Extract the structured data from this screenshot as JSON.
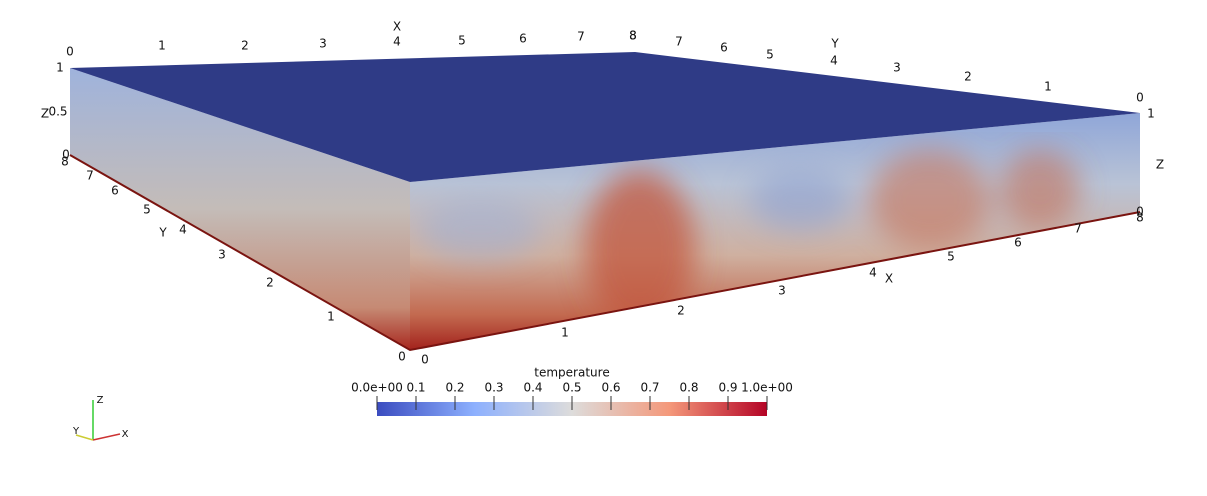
{
  "box_axes": {
    "back_x": {
      "title": "X",
      "labels": [
        0,
        1,
        2,
        3,
        4,
        5,
        6,
        7,
        8
      ]
    },
    "back_y": {
      "title": "Y",
      "labels": [
        8,
        7,
        6,
        5,
        4,
        3,
        2,
        1,
        0
      ]
    },
    "left_z": {
      "title": "Z",
      "labels": [
        1,
        0.5,
        0
      ]
    },
    "right_z": {
      "title": "Z",
      "labels": [
        1,
        0
      ]
    },
    "front_y": {
      "title": "Y",
      "labels": [
        8,
        7,
        6,
        5,
        4,
        3,
        2,
        1,
        0
      ]
    },
    "front_x": {
      "title": "X",
      "labels": [
        0,
        1,
        2,
        3,
        4,
        5,
        6,
        7,
        8
      ]
    }
  },
  "colorbar": {
    "title": "temperature",
    "range": [
      0,
      1
    ],
    "ticks": [
      {
        "value": 0,
        "label": "0.0e+00"
      },
      0.1,
      0.2,
      0.3,
      0.4,
      0.5,
      0.6,
      0.7,
      0.8,
      0.9,
      {
        "value": 1,
        "label": "1.0e+00"
      }
    ]
  },
  "orientation": {
    "labels": [
      "Z",
      "Y",
      "X"
    ]
  }
}
